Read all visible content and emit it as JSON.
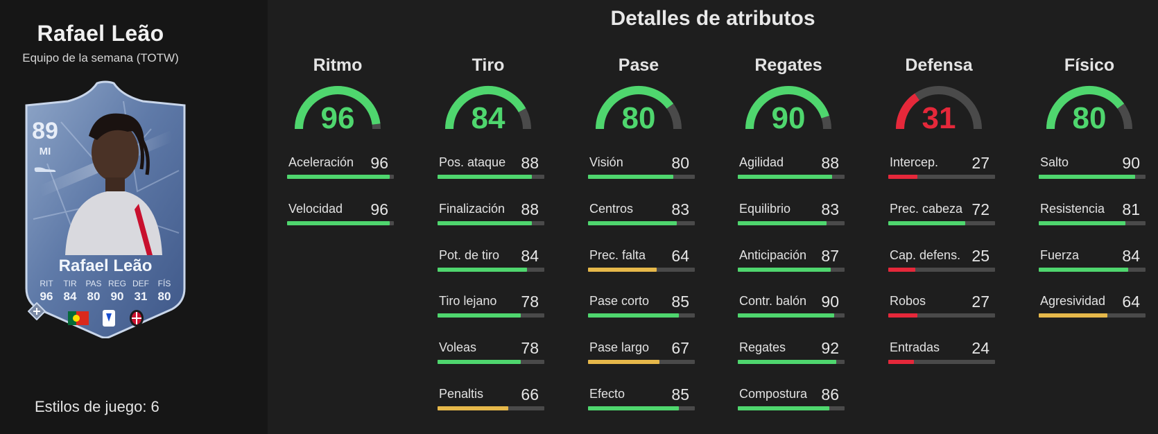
{
  "player": {
    "name": "Rafael Leão",
    "subtitle": "Equipo de la semana (TOTW)",
    "playstyles_label": "Estilos de juego: 6"
  },
  "card": {
    "rating": "89",
    "position": "MI",
    "name": "Rafael Leão",
    "stats": [
      {
        "label": "RIT",
        "value": "96"
      },
      {
        "label": "TIR",
        "value": "84"
      },
      {
        "label": "PAS",
        "value": "80"
      },
      {
        "label": "REG",
        "value": "90"
      },
      {
        "label": "DEF",
        "value": "31"
      },
      {
        "label": "FÍS",
        "value": "80"
      }
    ],
    "icons": [
      "portugal-flag-icon",
      "serie-a-league-icon",
      "ac-milan-crest-icon"
    ]
  },
  "details": {
    "title": "Detalles de atributos",
    "colors": {
      "green": "#4fd66e",
      "yellow": "#e6b84a",
      "red": "#e5283a",
      "track": "#4a4a4a"
    },
    "categories": [
      {
        "name": "Ritmo",
        "value": 96,
        "stats": [
          {
            "label": "Aceleración",
            "value": 96
          },
          {
            "label": "Velocidad",
            "value": 96
          }
        ]
      },
      {
        "name": "Tiro",
        "value": 84,
        "stats": [
          {
            "label": "Pos. ataque",
            "value": 88
          },
          {
            "label": "Finalización",
            "value": 88
          },
          {
            "label": "Pot. de tiro",
            "value": 84
          },
          {
            "label": "Tiro lejano",
            "value": 78
          },
          {
            "label": "Voleas",
            "value": 78
          },
          {
            "label": "Penaltis",
            "value": 66
          }
        ]
      },
      {
        "name": "Pase",
        "value": 80,
        "stats": [
          {
            "label": "Visión",
            "value": 80
          },
          {
            "label": "Centros",
            "value": 83
          },
          {
            "label": "Prec. falta",
            "value": 64
          },
          {
            "label": "Pase corto",
            "value": 85
          },
          {
            "label": "Pase largo",
            "value": 67
          },
          {
            "label": "Efecto",
            "value": 85
          }
        ]
      },
      {
        "name": "Regates",
        "value": 90,
        "stats": [
          {
            "label": "Agilidad",
            "value": 88
          },
          {
            "label": "Equilibrio",
            "value": 83
          },
          {
            "label": "Anticipación",
            "value": 87
          },
          {
            "label": "Contr. balón",
            "value": 90
          },
          {
            "label": "Regates",
            "value": 92
          },
          {
            "label": "Compostura",
            "value": 86
          }
        ]
      },
      {
        "name": "Defensa",
        "value": 31,
        "stats": [
          {
            "label": "Intercep.",
            "value": 27
          },
          {
            "label": "Prec. cabeza",
            "value": 72
          },
          {
            "label": "Cap. defens.",
            "value": 25
          },
          {
            "label": "Robos",
            "value": 27
          },
          {
            "label": "Entradas",
            "value": 24
          }
        ]
      },
      {
        "name": "Físico",
        "value": 80,
        "stats": [
          {
            "label": "Salto",
            "value": 90
          },
          {
            "label": "Resistencia",
            "value": 81
          },
          {
            "label": "Fuerza",
            "value": 84
          },
          {
            "label": "Agresividad",
            "value": 64
          }
        ]
      }
    ]
  }
}
